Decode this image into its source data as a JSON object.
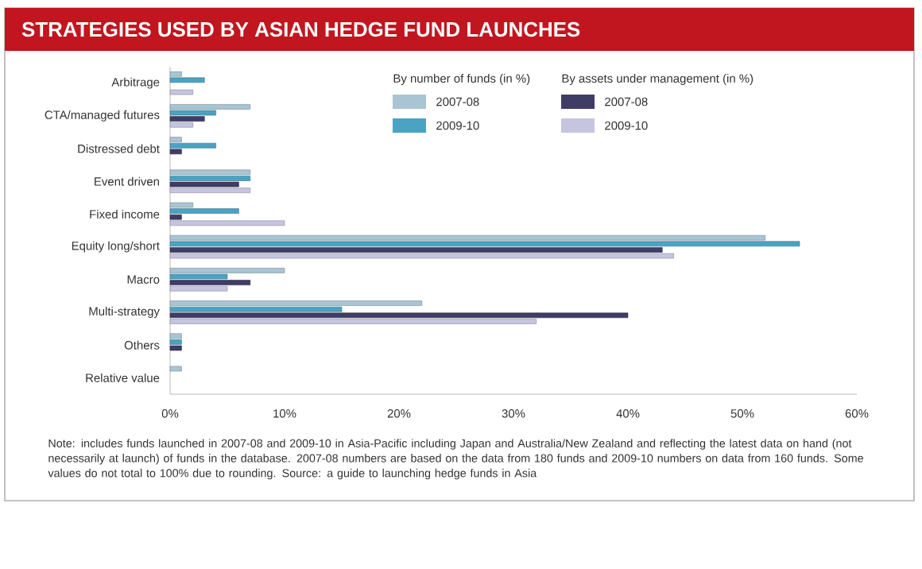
{
  "chart_data": {
    "type": "bar",
    "orientation": "horizontal",
    "title": "STRATEGIES USED BY ASIAN HEDGE FUND LAUNCHES",
    "categories": [
      "Arbitrage",
      "CTA/managed futures",
      "Distressed debt",
      "Event driven",
      "Fixed income",
      "Equity long/short",
      "Macro",
      "Multi-strategy",
      "Others",
      "Relative value"
    ],
    "series": [
      {
        "name": "2007-08",
        "color": "#a9c4d2",
        "values": [
          1,
          7,
          1,
          7,
          2,
          52,
          10,
          22,
          1,
          1
        ]
      },
      {
        "name": "2009-10",
        "color": "#4ba3c3",
        "values": [
          3,
          4,
          4,
          7,
          6,
          55,
          5,
          15,
          1,
          null
        ]
      },
      {
        "name": "2007-08",
        "color": "#3f3c66",
        "values": [
          null,
          3,
          1,
          6,
          1,
          43,
          7,
          40,
          1,
          null
        ]
      },
      {
        "name": "2009-10",
        "color": "#c6c5e0",
        "values": [
          2,
          2,
          null,
          7,
          10,
          44,
          5,
          32,
          null,
          null
        ]
      }
    ],
    "xlim": [
      0,
      60
    ],
    "xticks": [
      {
        "value": 0,
        "label": "0%"
      },
      {
        "value": 10,
        "label": "10%"
      },
      {
        "value": 20,
        "label": "20%"
      },
      {
        "value": 30,
        "label": "30%"
      },
      {
        "value": 40,
        "label": "40%"
      },
      {
        "value": 50,
        "label": "50%"
      },
      {
        "value": 60,
        "label": "60%"
      }
    ],
    "legend": "top right",
    "annotations": [
      "By number of funds (in %)",
      "By assets under management (in %)",
      "Note: includes funds launched in 2007-08 and 2009-10 in Asia-Pacific including Japan and Australia/New Zealand and reflecting the latest data on hand (not necessarily at launch) of funds in the database. 2007-08 numbers are based on the data from 180 funds and 2009-10 numbers on data from 160 funds. Some values do not total to 100% due to rounding. Source: a guide to launching hedge funds in Asia"
    ]
  }
}
